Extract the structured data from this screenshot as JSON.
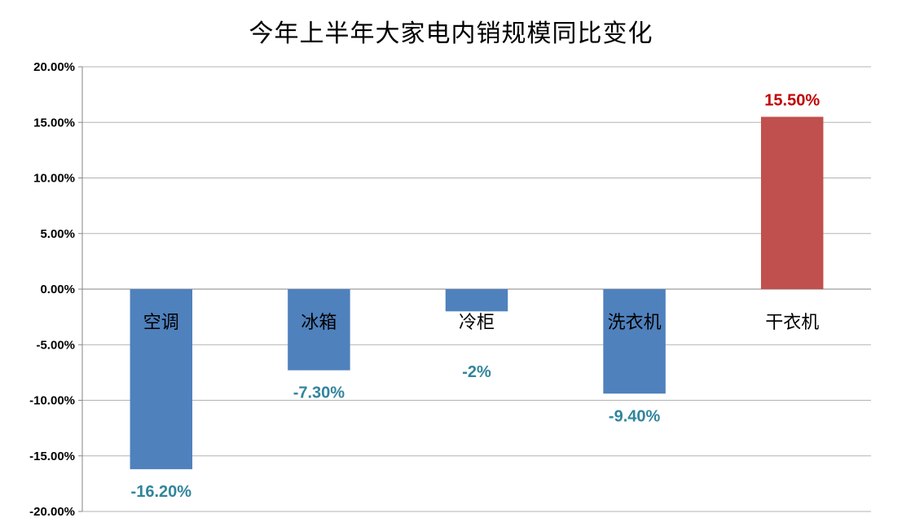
{
  "chart_data": {
    "type": "bar",
    "title": "今年上半年大家电内销规模同比变化",
    "xlabel": "",
    "ylabel": "",
    "categories": [
      "空调",
      "冰箱",
      "冷柜",
      "洗衣机",
      "干衣机"
    ],
    "values": [
      -16.2,
      -7.3,
      -2,
      -9.4,
      15.5
    ],
    "data_labels": [
      "-16.20%",
      "-7.30%",
      "-2%",
      "-9.40%",
      "15.50%"
    ],
    "ylim": [
      -20,
      20
    ],
    "y_ticks": [
      20,
      15,
      10,
      5,
      0,
      -5,
      -10,
      -15,
      -20
    ],
    "y_tick_labels": [
      "20.00%",
      "15.00%",
      "10.00%",
      "5.00%",
      "0.00%",
      "-5.00%",
      "-10.00%",
      "-15.00%",
      "-20.00%"
    ],
    "grid": true,
    "legend": "none",
    "colors": {
      "negative_bar": "#4f81bd",
      "positive_bar": "#c0504d",
      "negative_label": "#31859c",
      "positive_label": "#c00000",
      "grid": "#b3b3b3",
      "axis": "#868686"
    }
  }
}
